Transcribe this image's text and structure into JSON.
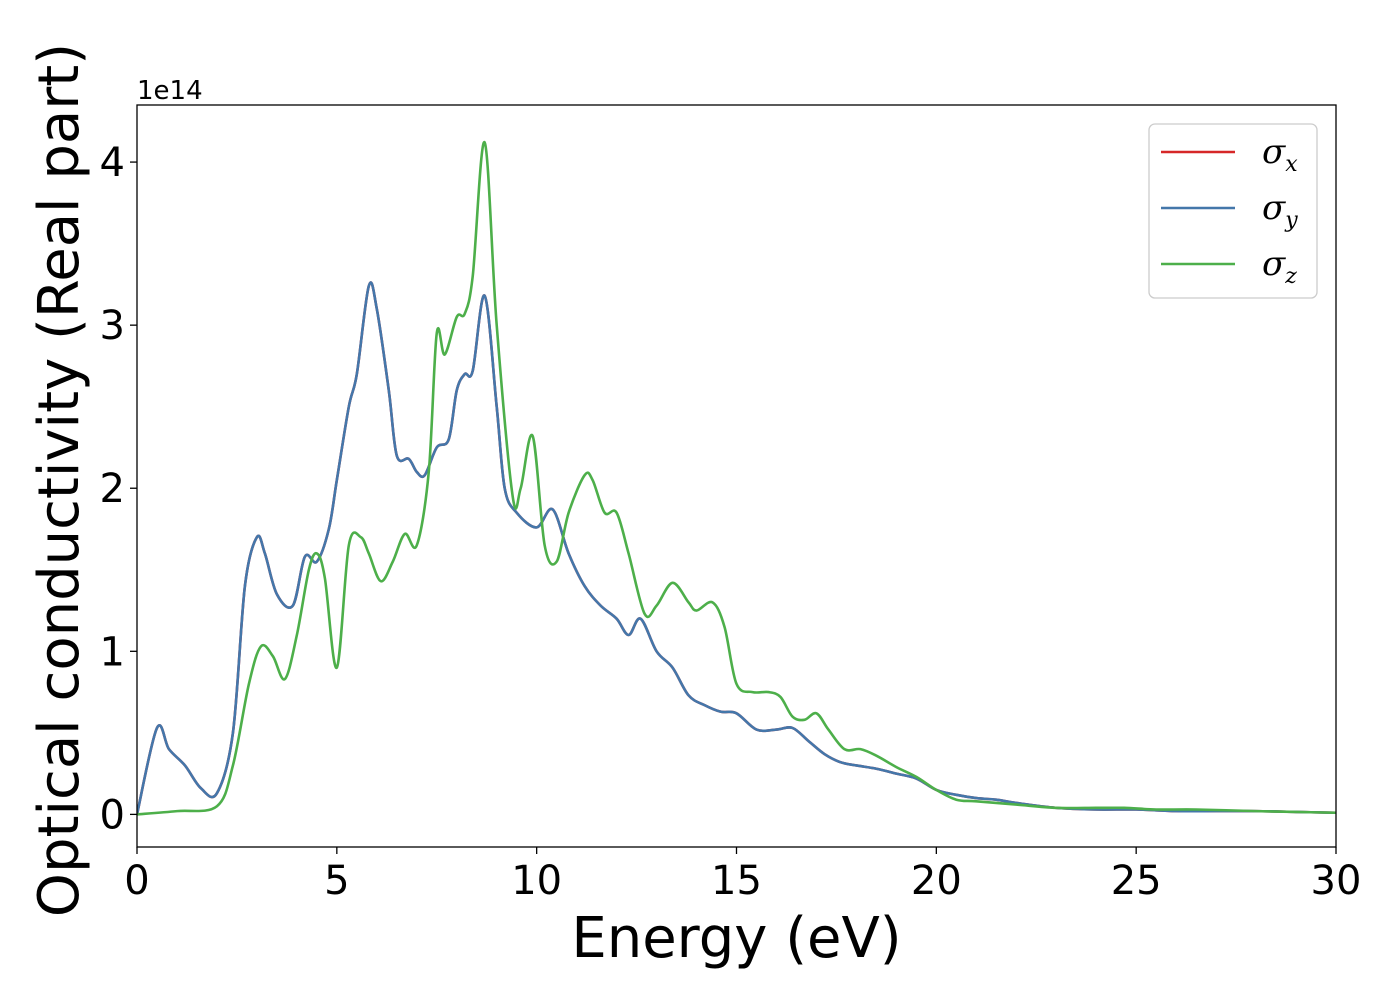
{
  "chart_data": {
    "type": "line",
    "title": "",
    "xlabel": "Energy (eV)",
    "ylabel": "Optical conductivity (Real part)",
    "y_offset_label": "1e14",
    "xlim": [
      0,
      30
    ],
    "ylim": [
      -0.2,
      4.35
    ],
    "x_ticks": [
      "0",
      "5",
      "10",
      "15",
      "20",
      "25",
      "30"
    ],
    "y_ticks": [
      "0",
      "1",
      "2",
      "3",
      "4"
    ],
    "grid": false,
    "legend_position": "top-right",
    "series": [
      {
        "name": "σx",
        "symbol": "σ",
        "subscript": "x",
        "color": "#d62728",
        "x": [
          0,
          0.5,
          0.8,
          1.2,
          1.6,
          2.0,
          2.4,
          2.7,
          3.0,
          3.2,
          3.5,
          3.9,
          4.2,
          4.5,
          4.8,
          5.0,
          5.3,
          5.5,
          5.8,
          6.0,
          6.3,
          6.5,
          6.8,
          7.0,
          7.2,
          7.5,
          7.8,
          8.0,
          8.2,
          8.4,
          8.7,
          9.0,
          9.2,
          9.5,
          10.0,
          10.4,
          10.8,
          11.2,
          11.6,
          12.0,
          12.3,
          12.6,
          13.0,
          13.4,
          13.8,
          14.2,
          14.6,
          15.0,
          15.5,
          16.0,
          16.4,
          16.8,
          17.2,
          17.6,
          18.0,
          18.5,
          19.0,
          19.5,
          20.0,
          20.5,
          21.0,
          21.5,
          22.0,
          23.0,
          24.0,
          25.0,
          26.0,
          27.0,
          28.0,
          29.0,
          30.0
        ],
        "values": [
          0.0,
          0.53,
          0.4,
          0.3,
          0.16,
          0.13,
          0.5,
          1.4,
          1.7,
          1.6,
          1.35,
          1.28,
          1.58,
          1.55,
          1.75,
          2.05,
          2.5,
          2.7,
          3.24,
          3.1,
          2.6,
          2.2,
          2.18,
          2.1,
          2.08,
          2.25,
          2.3,
          2.6,
          2.7,
          2.72,
          3.18,
          2.5,
          2.0,
          1.85,
          1.76,
          1.87,
          1.6,
          1.4,
          1.28,
          1.2,
          1.1,
          1.2,
          1.0,
          0.9,
          0.73,
          0.67,
          0.63,
          0.62,
          0.52,
          0.52,
          0.53,
          0.45,
          0.37,
          0.32,
          0.3,
          0.28,
          0.25,
          0.22,
          0.15,
          0.12,
          0.1,
          0.09,
          0.07,
          0.04,
          0.03,
          0.03,
          0.02,
          0.02,
          0.02,
          0.015,
          0.01
        ]
      },
      {
        "name": "σy",
        "symbol": "σ",
        "subscript": "y",
        "color": "#4477aa",
        "x": [
          0,
          0.5,
          0.8,
          1.2,
          1.6,
          2.0,
          2.4,
          2.7,
          3.0,
          3.2,
          3.5,
          3.9,
          4.2,
          4.5,
          4.8,
          5.0,
          5.3,
          5.5,
          5.8,
          6.0,
          6.3,
          6.5,
          6.8,
          7.0,
          7.2,
          7.5,
          7.8,
          8.0,
          8.2,
          8.4,
          8.7,
          9.0,
          9.2,
          9.5,
          10.0,
          10.4,
          10.8,
          11.2,
          11.6,
          12.0,
          12.3,
          12.6,
          13.0,
          13.4,
          13.8,
          14.2,
          14.6,
          15.0,
          15.5,
          16.0,
          16.4,
          16.8,
          17.2,
          17.6,
          18.0,
          18.5,
          19.0,
          19.5,
          20.0,
          20.5,
          21.0,
          21.5,
          22.0,
          23.0,
          24.0,
          25.0,
          26.0,
          27.0,
          28.0,
          29.0,
          30.0
        ],
        "values": [
          0.0,
          0.53,
          0.4,
          0.3,
          0.16,
          0.13,
          0.5,
          1.4,
          1.7,
          1.6,
          1.35,
          1.28,
          1.58,
          1.55,
          1.75,
          2.05,
          2.5,
          2.7,
          3.24,
          3.1,
          2.6,
          2.2,
          2.18,
          2.1,
          2.08,
          2.25,
          2.3,
          2.6,
          2.7,
          2.72,
          3.18,
          2.5,
          2.0,
          1.85,
          1.76,
          1.87,
          1.6,
          1.4,
          1.28,
          1.2,
          1.1,
          1.2,
          1.0,
          0.9,
          0.73,
          0.67,
          0.63,
          0.62,
          0.52,
          0.52,
          0.53,
          0.45,
          0.37,
          0.32,
          0.3,
          0.28,
          0.25,
          0.22,
          0.15,
          0.12,
          0.1,
          0.09,
          0.07,
          0.04,
          0.03,
          0.03,
          0.02,
          0.02,
          0.02,
          0.015,
          0.01
        ]
      },
      {
        "name": "σz",
        "symbol": "σ",
        "subscript": "z",
        "color": "#4daf4a",
        "x": [
          0,
          1.0,
          2.0,
          2.4,
          2.8,
          3.1,
          3.4,
          3.7,
          4.0,
          4.3,
          4.5,
          4.7,
          5.0,
          5.3,
          5.6,
          5.8,
          6.1,
          6.4,
          6.7,
          7.0,
          7.3,
          7.5,
          7.7,
          8.0,
          8.2,
          8.4,
          8.7,
          9.0,
          9.4,
          9.6,
          9.9,
          10.2,
          10.5,
          10.8,
          11.2,
          11.4,
          11.7,
          12.0,
          12.3,
          12.7,
          13.0,
          13.4,
          13.8,
          14.0,
          14.4,
          14.7,
          15.0,
          15.4,
          15.8,
          16.1,
          16.4,
          16.7,
          17.0,
          17.3,
          17.7,
          18.1,
          18.5,
          19.0,
          19.5,
          20.0,
          20.5,
          21.0,
          22.0,
          23.0,
          24.0,
          24.7,
          25.5,
          26.5,
          28.0,
          29.0,
          30.0
        ],
        "values": [
          0.0,
          0.02,
          0.05,
          0.3,
          0.8,
          1.03,
          0.97,
          0.83,
          1.1,
          1.5,
          1.6,
          1.45,
          0.9,
          1.65,
          1.7,
          1.6,
          1.43,
          1.55,
          1.72,
          1.65,
          2.1,
          2.95,
          2.82,
          3.05,
          3.07,
          3.3,
          4.12,
          3.0,
          1.95,
          2.0,
          2.32,
          1.65,
          1.55,
          1.85,
          2.08,
          2.05,
          1.85,
          1.85,
          1.6,
          1.23,
          1.28,
          1.42,
          1.3,
          1.25,
          1.3,
          1.15,
          0.8,
          0.75,
          0.75,
          0.72,
          0.6,
          0.58,
          0.62,
          0.52,
          0.4,
          0.4,
          0.36,
          0.29,
          0.23,
          0.15,
          0.09,
          0.08,
          0.06,
          0.04,
          0.04,
          0.04,
          0.03,
          0.03,
          0.02,
          0.015,
          0.01
        ]
      }
    ]
  }
}
